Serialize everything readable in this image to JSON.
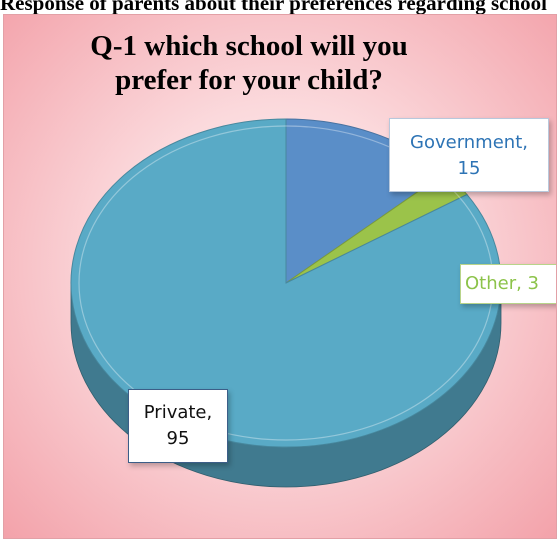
{
  "page": {
    "caption": "Response of parents about their preferences regarding school"
  },
  "chart_data": {
    "type": "pie",
    "title": "Q-1 which school will you prefer for your child?",
    "style": "3D pie",
    "categories": [
      "Government",
      "Other",
      "Private"
    ],
    "values": [
      15,
      3,
      95
    ],
    "labels": [
      "Government, 15",
      "Other, 3",
      "Private, 95"
    ],
    "label_lines": [
      [
        "Government,",
        "15"
      ],
      [
        "Other, 3"
      ],
      [
        "Private,",
        "95"
      ]
    ],
    "colors": [
      "#5a8ec8",
      "#9bc34a",
      "#59aac6"
    ],
    "label_colors": [
      "#2e74b5",
      "#8cc34a",
      "#111111"
    ],
    "legend": "none"
  }
}
